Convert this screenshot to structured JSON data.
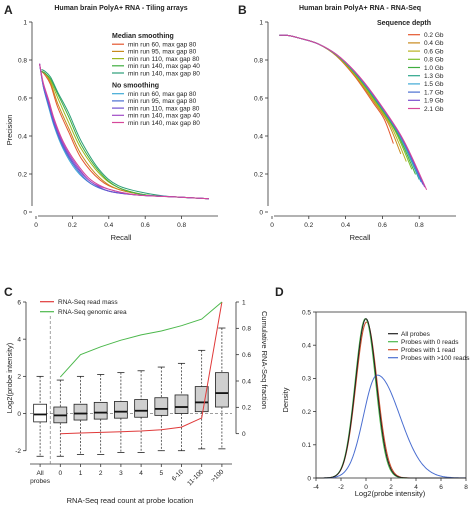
{
  "panel_letters": [
    "A",
    "B",
    "C",
    "D"
  ],
  "chart_data": [
    {
      "panel": "A",
      "type": "line",
      "title": "Human brain PolyA+ RNA - Tiling arrays",
      "xlabel": "Recall",
      "ylabel": "Precision",
      "xlim": [
        0,
        1
      ],
      "ylim": [
        0,
        1
      ],
      "xticks": [
        "0",
        "0.2",
        "0.4",
        "0.6",
        "0.8"
      ],
      "yticks": [
        "0",
        "0.2",
        "0.4",
        "0.6",
        "0.8",
        "1"
      ],
      "legend_groups": [
        {
          "heading": "Median smoothing",
          "entries": [
            {
              "name": "min run 60, max gap 80",
              "color": "#e4572e"
            },
            {
              "name": "min run 95, max gap 80",
              "color": "#c88a1c"
            },
            {
              "name": "min run 110, max gap 80",
              "color": "#9bb81f"
            },
            {
              "name": "min run 140, max gap 40",
              "color": "#3fae3f"
            },
            {
              "name": "min run 140, max gap 80",
              "color": "#2c9e77"
            }
          ]
        },
        {
          "heading": "No smoothing",
          "entries": [
            {
              "name": "min run 60, max gap 80",
              "color": "#3fa9d6"
            },
            {
              "name": "min run 95, max gap 80",
              "color": "#4b6fd1"
            },
            {
              "name": "min run 110, max gap 80",
              "color": "#6f4fcf"
            },
            {
              "name": "min run 140, max gap 40",
              "color": "#a04ac7"
            },
            {
              "name": "min run 140, max gap 80",
              "color": "#d6479a"
            }
          ]
        }
      ],
      "series": [
        {
          "color": "#e4572e",
          "x": [
            0.03,
            0.05,
            0.08,
            0.12,
            0.18,
            0.25,
            0.35,
            0.45,
            0.6,
            0.75,
            0.95
          ],
          "y": [
            0.74,
            0.72,
            0.67,
            0.55,
            0.42,
            0.28,
            0.17,
            0.12,
            0.09,
            0.08,
            0.07
          ]
        },
        {
          "color": "#c88a1c",
          "x": [
            0.03,
            0.05,
            0.08,
            0.12,
            0.18,
            0.25,
            0.35,
            0.45,
            0.6,
            0.75,
            0.95
          ],
          "y": [
            0.74,
            0.73,
            0.68,
            0.57,
            0.44,
            0.3,
            0.18,
            0.12,
            0.09,
            0.08,
            0.07
          ]
        },
        {
          "color": "#9bb81f",
          "x": [
            0.03,
            0.05,
            0.08,
            0.12,
            0.18,
            0.25,
            0.35,
            0.45,
            0.6,
            0.75,
            0.95
          ],
          "y": [
            0.74,
            0.73,
            0.69,
            0.6,
            0.47,
            0.33,
            0.2,
            0.13,
            0.09,
            0.08,
            0.07
          ]
        },
        {
          "color": "#3fae3f",
          "x": [
            0.03,
            0.05,
            0.08,
            0.12,
            0.18,
            0.25,
            0.35,
            0.45,
            0.6,
            0.75,
            0.95
          ],
          "y": [
            0.74,
            0.73,
            0.7,
            0.62,
            0.5,
            0.35,
            0.21,
            0.13,
            0.09,
            0.08,
            0.07
          ]
        },
        {
          "color": "#2c9e77",
          "x": [
            0.03,
            0.05,
            0.08,
            0.12,
            0.18,
            0.25,
            0.35,
            0.45,
            0.6,
            0.75,
            0.95
          ],
          "y": [
            0.75,
            0.74,
            0.71,
            0.63,
            0.52,
            0.37,
            0.22,
            0.14,
            0.1,
            0.08,
            0.07
          ]
        },
        {
          "color": "#3fa9d6",
          "x": [
            0.02,
            0.04,
            0.07,
            0.1,
            0.15,
            0.22,
            0.3,
            0.4,
            0.55,
            0.75,
            0.95
          ],
          "y": [
            0.78,
            0.66,
            0.55,
            0.45,
            0.33,
            0.22,
            0.15,
            0.11,
            0.09,
            0.08,
            0.07
          ]
        },
        {
          "color": "#4b6fd1",
          "x": [
            0.02,
            0.04,
            0.07,
            0.1,
            0.15,
            0.22,
            0.3,
            0.4,
            0.55,
            0.75,
            0.95
          ],
          "y": [
            0.78,
            0.66,
            0.56,
            0.46,
            0.34,
            0.23,
            0.15,
            0.11,
            0.09,
            0.08,
            0.07
          ]
        },
        {
          "color": "#6f4fcf",
          "x": [
            0.02,
            0.04,
            0.07,
            0.1,
            0.15,
            0.22,
            0.3,
            0.4,
            0.55,
            0.75,
            0.95
          ],
          "y": [
            0.78,
            0.67,
            0.57,
            0.47,
            0.35,
            0.24,
            0.16,
            0.11,
            0.09,
            0.08,
            0.07
          ]
        },
        {
          "color": "#a04ac7",
          "x": [
            0.02,
            0.04,
            0.07,
            0.1,
            0.15,
            0.22,
            0.3,
            0.4,
            0.55,
            0.75,
            0.95
          ],
          "y": [
            0.78,
            0.67,
            0.58,
            0.48,
            0.36,
            0.25,
            0.16,
            0.12,
            0.09,
            0.08,
            0.07
          ]
        },
        {
          "color": "#d6479a",
          "x": [
            0.02,
            0.04,
            0.07,
            0.1,
            0.15,
            0.22,
            0.3,
            0.4,
            0.55,
            0.75,
            0.95
          ],
          "y": [
            0.78,
            0.68,
            0.59,
            0.49,
            0.37,
            0.26,
            0.17,
            0.12,
            0.09,
            0.08,
            0.07
          ]
        }
      ]
    },
    {
      "panel": "B",
      "type": "line",
      "title": "Human brain PolyA+ RNA - RNA-Seq",
      "xlabel": "Recall",
      "ylabel": "",
      "xlim": [
        0,
        1
      ],
      "ylim": [
        0,
        1
      ],
      "xticks": [
        "0",
        "0.2",
        "0.4",
        "0.6",
        "0.8"
      ],
      "yticks": [
        "0",
        "0.2",
        "0.4",
        "0.6",
        "0.8",
        "1"
      ],
      "legend_heading": "Sequence depth",
      "series": [
        {
          "name": "0.2 Gb",
          "color": "#e4572e",
          "xmax": 0.66
        },
        {
          "name": "0.4 Gb",
          "color": "#c88a1c",
          "xmax": 0.7
        },
        {
          "name": "0.6 Gb",
          "color": "#b8b21f",
          "xmax": 0.73
        },
        {
          "name": "0.8 Gb",
          "color": "#7cbf2a",
          "xmax": 0.76
        },
        {
          "name": "1.0 Gb",
          "color": "#3fae3f",
          "xmax": 0.78
        },
        {
          "name": "1.3 Gb",
          "color": "#2ca58a",
          "xmax": 0.8
        },
        {
          "name": "1.5 Gb",
          "color": "#3fa9d6",
          "xmax": 0.81
        },
        {
          "name": "1.7 Gb",
          "color": "#4b6fd1",
          "xmax": 0.82
        },
        {
          "name": "1.9 Gb",
          "color": "#7a4fcf",
          "xmax": 0.83
        },
        {
          "name": "2.1 Gb",
          "color": "#d6479a",
          "xmax": 0.84
        }
      ]
    },
    {
      "panel": "C",
      "type": "box",
      "xlabel": "RNA-Seq read count at probe location",
      "ylabel": "Log2(probe intensity)",
      "ylabel_right": "Cumulative RNA-Seq fraction",
      "ylim": [
        -2.5,
        6
      ],
      "ylim_right": [
        -0.2,
        1
      ],
      "yticks": [
        "-2",
        "0",
        "2",
        "4",
        "6"
      ],
      "yticks_right": [
        "0",
        "0.2",
        "0.4",
        "0.6",
        "0.8",
        "1"
      ],
      "categories": [
        "All probes",
        "0",
        "1",
        "2",
        "3",
        "4",
        "5",
        "6-10",
        "11-100",
        ">100"
      ],
      "boxes": [
        {
          "wlo": -2.3,
          "q1": -0.45,
          "med": -0.05,
          "q3": 0.5,
          "whi": 2.0
        },
        {
          "wlo": -2.3,
          "q1": -0.5,
          "med": -0.1,
          "q3": 0.35,
          "whi": 1.8
        },
        {
          "wlo": -2.2,
          "q1": -0.35,
          "med": 0.0,
          "q3": 0.5,
          "whi": 2.0
        },
        {
          "wlo": -2.2,
          "q1": -0.3,
          "med": 0.05,
          "q3": 0.6,
          "whi": 2.1
        },
        {
          "wlo": -2.1,
          "q1": -0.25,
          "med": 0.1,
          "q3": 0.65,
          "whi": 2.2
        },
        {
          "wlo": -2.1,
          "q1": -0.2,
          "med": 0.15,
          "q3": 0.75,
          "whi": 2.3
        },
        {
          "wlo": -2.0,
          "q1": -0.1,
          "med": 0.25,
          "q3": 0.85,
          "whi": 2.5
        },
        {
          "wlo": -2.0,
          "q1": 0.0,
          "med": 0.35,
          "q3": 1.0,
          "whi": 2.7
        },
        {
          "wlo": -1.9,
          "q1": 0.1,
          "med": 0.6,
          "q3": 1.45,
          "whi": 3.4
        },
        {
          "wlo": -1.9,
          "q1": 0.35,
          "med": 1.1,
          "q3": 2.2,
          "whi": 4.6
        }
      ],
      "series": [
        {
          "name": "RNA-Seq read mass",
          "color": "#e03a3a",
          "y": [
            null,
            0.0,
            0.005,
            0.01,
            0.015,
            0.02,
            0.03,
            0.05,
            0.12,
            1.0
          ]
        },
        {
          "name": "RNA-Seq genomic area",
          "color": "#4cb84c",
          "y": [
            null,
            0.43,
            0.6,
            0.66,
            0.71,
            0.75,
            0.78,
            0.82,
            0.87,
            1.0
          ]
        }
      ]
    },
    {
      "panel": "D",
      "type": "line",
      "xlabel": "Log2(probe intensity)",
      "ylabel": "Density",
      "xlim": [
        -4,
        8
      ],
      "ylim": [
        0,
        0.5
      ],
      "xticks": [
        "-4",
        "-2",
        "0",
        "2",
        "4",
        "6",
        "8"
      ],
      "yticks": [
        "0",
        "0.1",
        "0.2",
        "0.3",
        "0.4",
        "0.5"
      ],
      "series": [
        {
          "name": "All probes",
          "color": "#222222",
          "mu": 0.0,
          "sigma": 0.83,
          "peak": 0.48
        },
        {
          "name": "Probes with 0 reads",
          "color": "#4cb84c",
          "mu": -0.05,
          "sigma": 0.82,
          "peak": 0.48
        },
        {
          "name": "Probes with 1 read",
          "color": "#d0502a",
          "mu": 0.05,
          "sigma": 0.85,
          "peak": 0.47
        },
        {
          "name": "Probes with >100 reads",
          "color": "#4b6fd1",
          "mu": 0.9,
          "sigma_left": 1.1,
          "sigma_right": 1.8,
          "peak": 0.31
        }
      ]
    }
  ]
}
